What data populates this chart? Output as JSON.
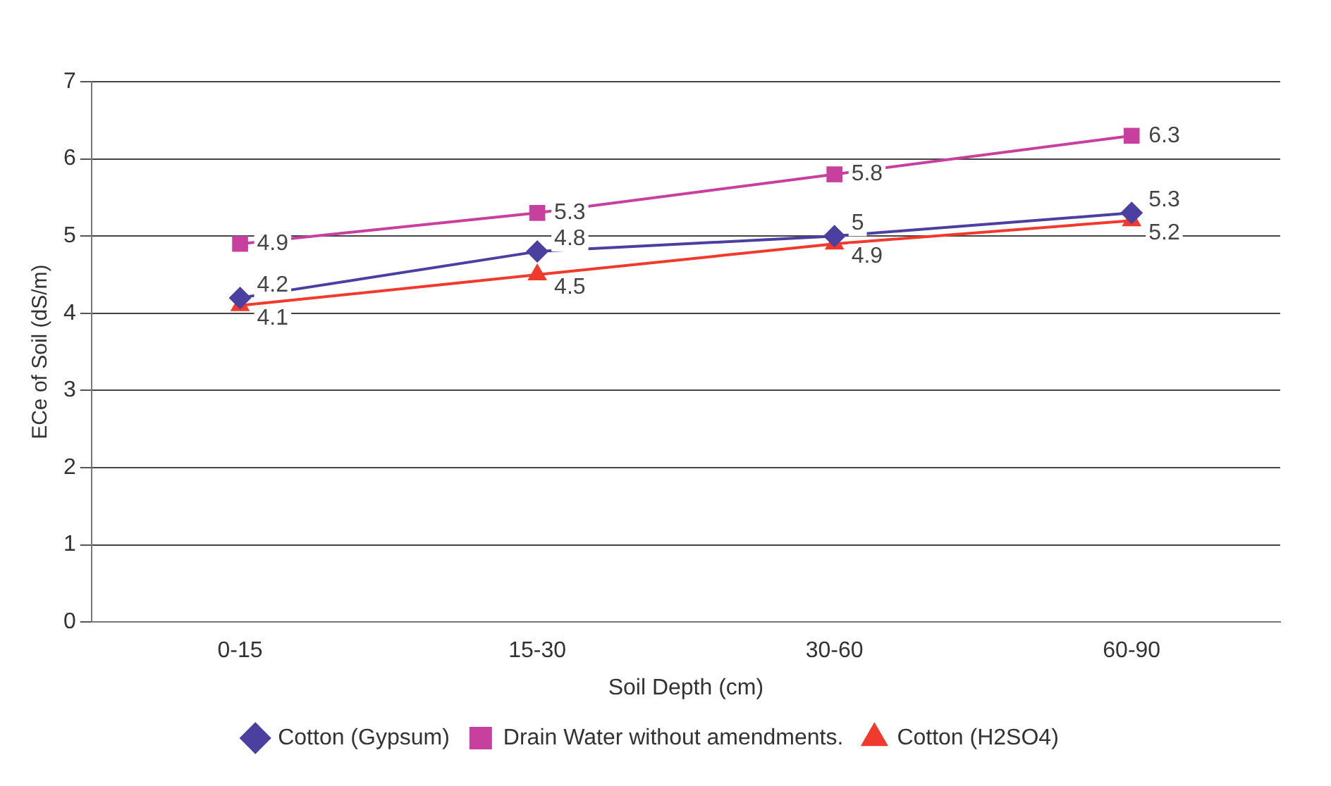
{
  "chart_data": {
    "type": "line",
    "xlabel": "Soil Depth (cm)",
    "ylabel": "ECe of Soil (dS/m)",
    "categories": [
      "0-15",
      "15-30",
      "30-60",
      "60-90"
    ],
    "series": [
      {
        "name": "Cotton (Gypsum)",
        "color": "#4b3fa0",
        "marker": "diamond",
        "values": [
          4.2,
          4.8,
          5,
          5.3
        ]
      },
      {
        "name": "Drain Water without amendments.",
        "color": "#c8409e",
        "marker": "square",
        "values": [
          4.9,
          5.3,
          5.8,
          6.3
        ]
      },
      {
        "name": "Cotton (H2SO4)",
        "color": "#f03a2e",
        "marker": "triangle",
        "values": [
          4.1,
          4.5,
          4.9,
          5.2
        ]
      }
    ],
    "ylim": [
      0,
      7
    ],
    "yticks": [
      0,
      1,
      2,
      3,
      4,
      5,
      6,
      7
    ],
    "grid": "y",
    "legend": "bottom",
    "data_labels": true,
    "line_style": "solid"
  }
}
